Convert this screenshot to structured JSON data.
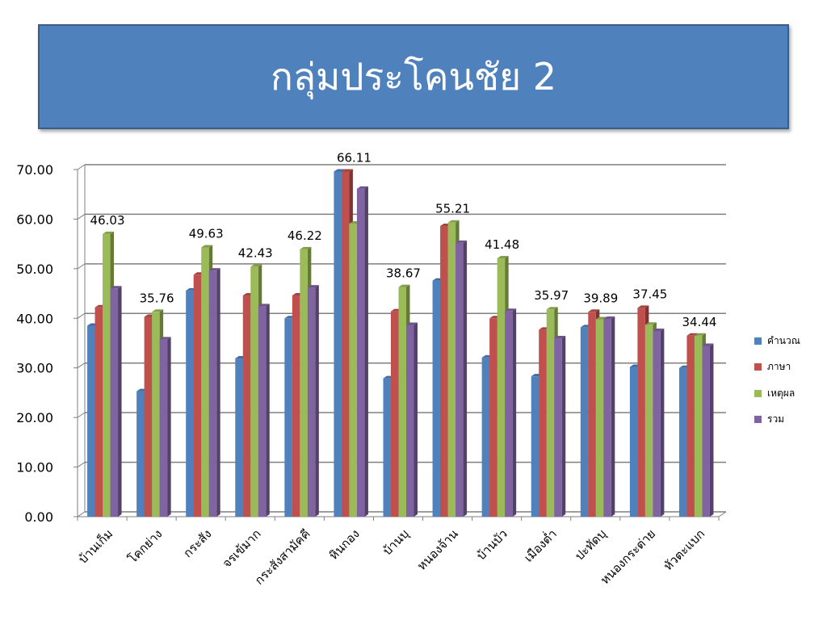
{
  "title": "กลุ่มประโคนชัย 2",
  "chart_data": {
    "type": "bar",
    "title": "",
    "xlabel": "",
    "ylabel": "",
    "ylim": [
      0,
      70
    ],
    "yticks": [
      "0.00",
      "10.00",
      "20.00",
      "30.00",
      "40.00",
      "50.00",
      "60.00",
      "70.00"
    ],
    "grid": true,
    "legend_position": "right",
    "categories": [
      "บ้านเก็ม",
      "โคกย่าง",
      "กระสัง",
      "จรเข้มาก",
      "กระสังสามัคคี",
      "หินกอง",
      "บ้านบุ",
      "หนองจ้าน",
      "บ้านบัว",
      "เมืองต่ำ",
      "ปะทัดบุ",
      "หนองกระต่าย",
      "หัวตะแบก"
    ],
    "series": [
      {
        "name": "คำนวณ",
        "color": "#4f81bd",
        "values": [
          38.5,
          25.3,
          45.6,
          31.9,
          40.0,
          69.6,
          27.9,
          47.6,
          32.1,
          28.3,
          38.2,
          30.2,
          30.0
        ]
      },
      {
        "name": "ภาษา",
        "color": "#c0504d",
        "values": [
          42.2,
          40.3,
          48.8,
          44.6,
          44.6,
          69.6,
          41.4,
          58.6,
          40.0,
          37.7,
          41.3,
          42.1,
          36.5
        ]
      },
      {
        "name": "เหตุผล",
        "color": "#9bbb59",
        "values": [
          57.0,
          41.3,
          54.3,
          50.4,
          53.9,
          59.1,
          46.3,
          59.3,
          52.1,
          41.8,
          39.8,
          38.7,
          36.5
        ]
      },
      {
        "name": "รวม",
        "color": "#8064a2",
        "values": [
          46.03,
          35.76,
          49.63,
          42.43,
          46.22,
          66.11,
          38.67,
          55.21,
          41.48,
          35.97,
          39.89,
          37.45,
          34.44
        ]
      }
    ],
    "data_labels": [
      "46.03",
      "35.76",
      "49.63",
      "42.43",
      "46.22",
      "66.11",
      "38.67",
      "55.21",
      "41.48",
      "35.97",
      "39.89",
      "37.45",
      "34.44"
    ]
  }
}
